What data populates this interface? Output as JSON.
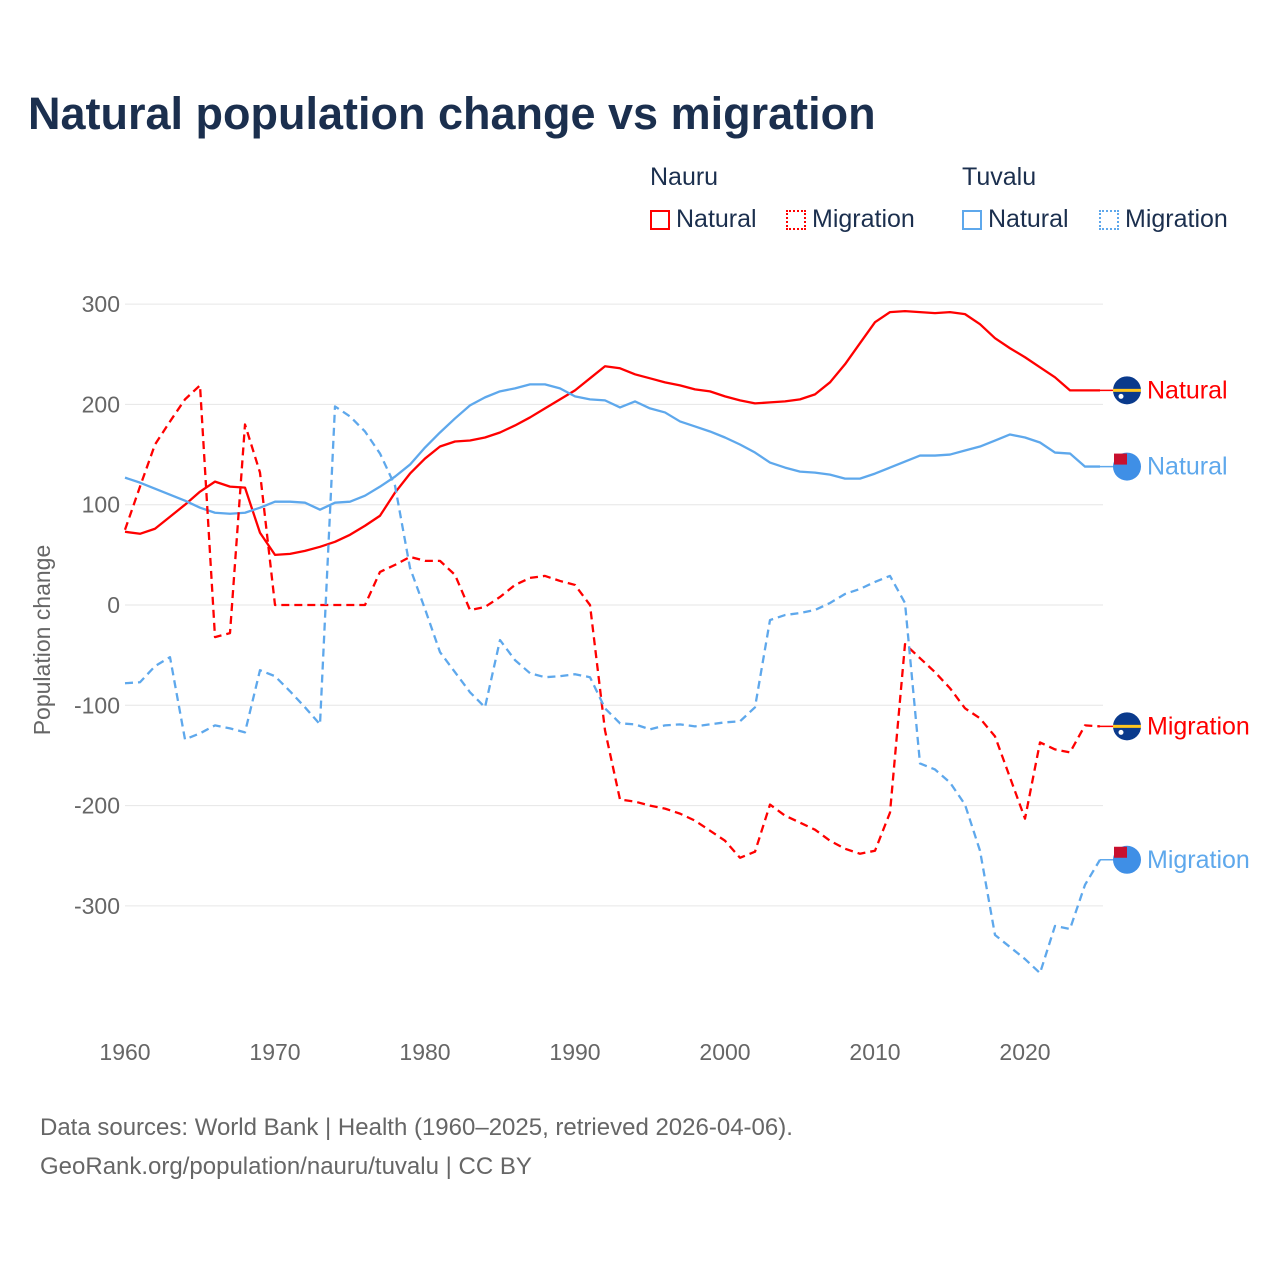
{
  "title": "Natural population change vs migration",
  "legend": {
    "groups": [
      {
        "label": "Nauru",
        "items": [
          {
            "label": "Natural",
            "style": "solid"
          },
          {
            "label": "Migration",
            "style": "dotted"
          }
        ],
        "color": "#ff0000"
      },
      {
        "label": "Tuvalu",
        "items": [
          {
            "label": "Natural",
            "style": "solid"
          },
          {
            "label": "Migration",
            "style": "dotted"
          }
        ],
        "color": "#5ea8ec"
      }
    ]
  },
  "source": {
    "line1": "Data sources: World Bank | Health (1960–2025, retrieved 2026-04-06).",
    "line2": "GeoRank.org/population/nauru/tuvalu | CC BY"
  },
  "chart_data": {
    "type": "line",
    "title": "Natural population change vs migration",
    "xlabel": "",
    "ylabel": "Population change",
    "xlim": [
      1960,
      2025
    ],
    "ylim": [
      -370,
      300
    ],
    "xticks": [
      1960,
      1970,
      1980,
      1990,
      2000,
      2010,
      2020
    ],
    "yticks": [
      300,
      200,
      100,
      0,
      -100,
      -200,
      -300
    ],
    "grid": true,
    "x_start": 1960,
    "series": [
      {
        "name": "Nauru Natural",
        "end_label": "Natural",
        "color": "#ff0000",
        "dash": false,
        "values": [
          73,
          71,
          76,
          88,
          100,
          113,
          123,
          118,
          117,
          72,
          50,
          51,
          54,
          58,
          63,
          70,
          79,
          89,
          112,
          131,
          146,
          158,
          163,
          164,
          167,
          172,
          179,
          187,
          196,
          205,
          214,
          226,
          238,
          236,
          230,
          226,
          222,
          219,
          215,
          213,
          208,
          204,
          201,
          202,
          203,
          205,
          210,
          222,
          240,
          261,
          282,
          292,
          293,
          292,
          291,
          292,
          290,
          280,
          266,
          256,
          247,
          237,
          227,
          214,
          214,
          214
        ]
      },
      {
        "name": "Tuvalu Natural",
        "end_label": "Natural",
        "color": "#5ea8ec",
        "dash": false,
        "values": [
          127,
          122,
          116,
          110,
          104,
          97,
          92,
          91,
          92,
          97,
          103,
          103,
          102,
          95,
          102,
          103,
          109,
          118,
          128,
          140,
          157,
          172,
          186,
          199,
          207,
          213,
          216,
          220,
          220,
          216,
          208,
          205,
          204,
          197,
          203,
          196,
          192,
          183,
          178,
          173,
          167,
          160,
          152,
          142,
          137,
          133,
          132,
          130,
          126,
          126,
          131,
          137,
          143,
          149,
          149,
          150,
          154,
          158,
          164,
          170,
          167,
          162,
          152,
          151,
          138,
          138
        ]
      },
      {
        "name": "Nauru Migration",
        "end_label": "Migration",
        "color": "#ff0000",
        "dash": true,
        "values": [
          75,
          118,
          160,
          183,
          205,
          219,
          -32,
          -28,
          180,
          132,
          0,
          0,
          0,
          0,
          0,
          0,
          0,
          33,
          40,
          48,
          44,
          44,
          30,
          -5,
          -2,
          8,
          20,
          27,
          29,
          24,
          20,
          0,
          -125,
          -194,
          -196,
          -200,
          -203,
          -208,
          -215,
          -225,
          -235,
          -252,
          -246,
          -199,
          -210,
          -217,
          -224,
          -235,
          -243,
          -248,
          -245,
          -207,
          -39,
          -53,
          -67,
          -83,
          -103,
          -113,
          -131,
          -172,
          -213,
          -137,
          -144,
          -147,
          -120,
          -121
        ]
      },
      {
        "name": "Tuvalu Migration",
        "end_label": "Migration",
        "color": "#5ea8ec",
        "dash": true,
        "values": [
          -78,
          -77,
          -61,
          -52,
          -134,
          -128,
          -120,
          -123,
          -127,
          -65,
          -71,
          -86,
          -102,
          -119,
          198,
          188,
          173,
          151,
          119,
          37,
          -4,
          -47,
          -67,
          -87,
          -102,
          -35,
          -55,
          -68,
          -72,
          -71,
          -69,
          -72,
          -103,
          -118,
          -119,
          -124,
          -120,
          -119,
          -121,
          -119,
          -117,
          -116,
          -102,
          -15,
          -10,
          -8,
          -5,
          2,
          11,
          16,
          23,
          29,
          2,
          -158,
          -164,
          -177,
          -199,
          -245,
          -329,
          -341,
          -353,
          -367,
          -320,
          -323,
          -279,
          -254
        ]
      }
    ]
  }
}
